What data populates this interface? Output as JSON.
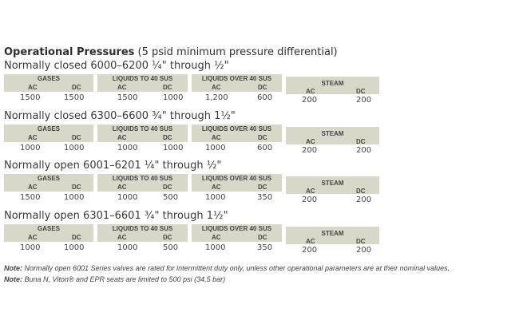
{
  "title": {
    "bold": "Operational Pressures",
    "rest": " (5 psid minimum pressure differential)"
  },
  "columns": [
    "GASES",
    "LIQUIDS TO 40 SUS",
    "LIQUIDS OVER 40 SUS",
    "STEAM"
  ],
  "ac": "AC",
  "dc": "DC",
  "sections": [
    {
      "label": "Normally closed 6000–6200 ¼\" through ½\"",
      "values": [
        [
          "1500",
          "1500"
        ],
        [
          "1500",
          "1000"
        ],
        [
          "1,200",
          "600"
        ],
        [
          "200",
          "200"
        ]
      ]
    },
    {
      "label": "Normally closed 6300–6600 ¾\" through 1½\"",
      "values": [
        [
          "1000",
          "1000"
        ],
        [
          "1000",
          "1000"
        ],
        [
          "1000",
          "600"
        ],
        [
          "200",
          "200"
        ]
      ]
    },
    {
      "label": "Normally open 6001–6201 ¼\" through ½\"",
      "values": [
        [
          "1500",
          "1000"
        ],
        [
          "1000",
          "500"
        ],
        [
          "1000",
          "350"
        ],
        [
          "200",
          "200"
        ]
      ]
    },
    {
      "label": "Normally open 6301–6601 ¾\" through 1½\"",
      "values": [
        [
          "1000",
          "1000"
        ],
        [
          "1000",
          "500"
        ],
        [
          "1000",
          "350"
        ],
        [
          "200",
          "200"
        ]
      ]
    }
  ],
  "notes": [
    {
      "prefix": "Note:",
      "text": " Normally open 6001 Series valves are rated for intermittent duty only, unless other operational parameters are at their nominal values."
    },
    {
      "prefix": "Note:",
      "text": " Buna N, Viton® and EPR seats are limited to 500 psi (34.5 bar)"
    }
  ]
}
